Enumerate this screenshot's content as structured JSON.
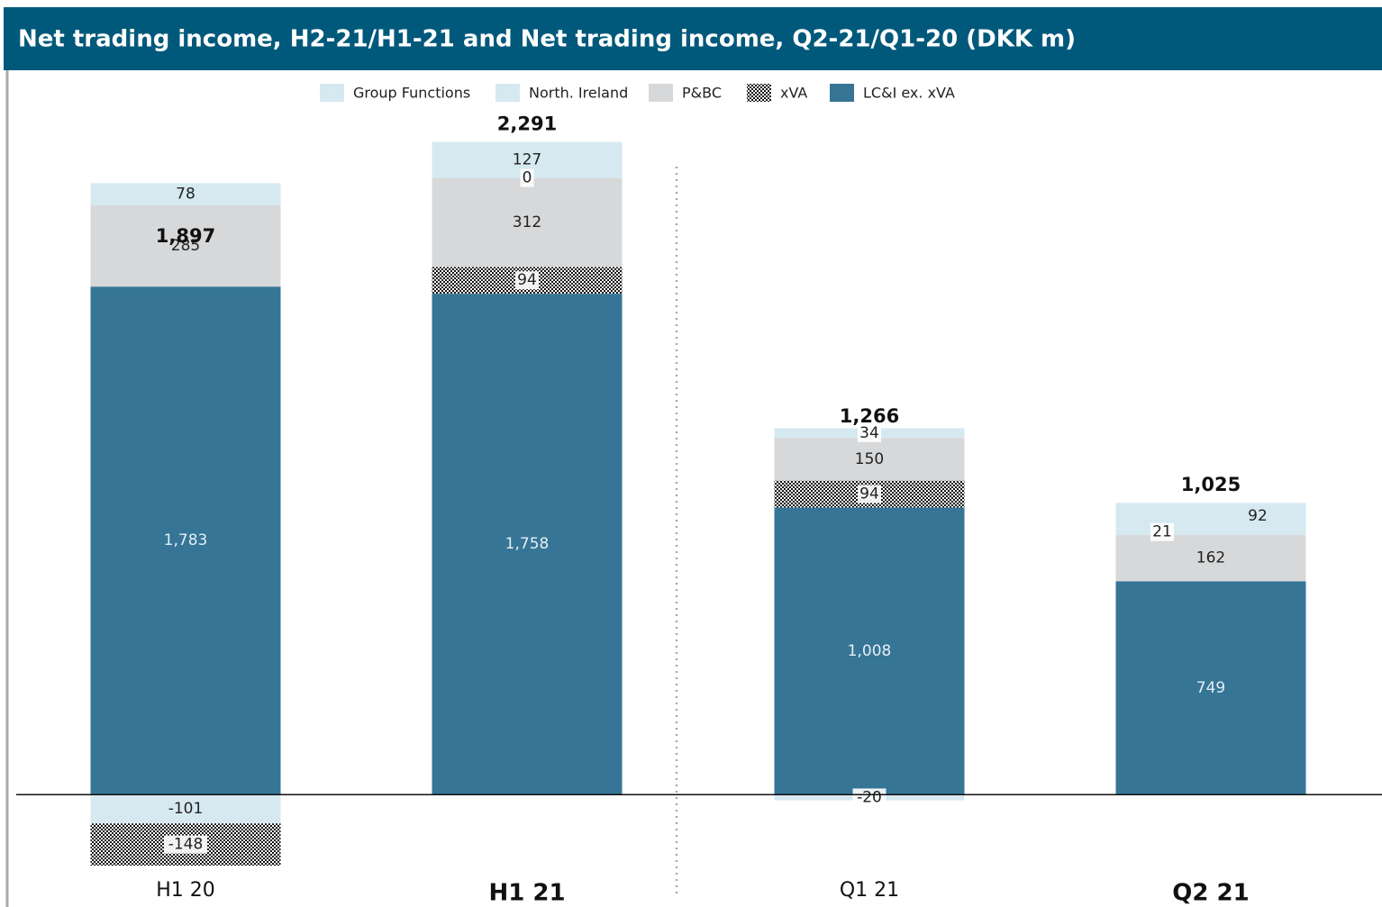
{
  "chart_data": {
    "type": "stacked_bar",
    "title": "Net trading income, H2-21/H1-21 and Net trading income, Q2-21/Q1-20  (DKK m)",
    "categories": [
      "H1 20",
      "H1 21",
      "Q1 21",
      "Q2 21"
    ],
    "series": [
      {
        "name": "Group Functions",
        "color": "#d6e9f1",
        "values": [
          -101,
          0,
          -20,
          21
        ],
        "value_labels": [
          "-101",
          "0",
          "-20",
          "21"
        ]
      },
      {
        "name": "North. Ireland",
        "color": "#d6e9f1",
        "values": [
          78,
          127,
          34,
          92
        ],
        "value_labels": [
          "78",
          "127",
          "34",
          "92"
        ]
      },
      {
        "name": "P&BC",
        "color": "#d7d8da",
        "values": [
          285,
          312,
          150,
          162
        ],
        "value_labels": [
          "285",
          "312",
          "150",
          "162"
        ]
      },
      {
        "name": "xVA",
        "color": "hatch",
        "values": [
          -148,
          94,
          94,
          null
        ],
        "value_labels": [
          "-148",
          "94",
          "94",
          null
        ]
      },
      {
        "name": "LC&I ex. xVA",
        "color": "#367596",
        "values": [
          1783,
          1758,
          1008,
          749
        ],
        "value_labels": [
          "1,783",
          "1,758",
          "1,008",
          "749"
        ]
      }
    ],
    "totals": [
      1897,
      2291,
      1266,
      1025
    ],
    "total_labels": [
      "1,897",
      "2,291",
      "1,266",
      "1,025"
    ],
    "ylim": [
      -350,
      2400
    ]
  }
}
